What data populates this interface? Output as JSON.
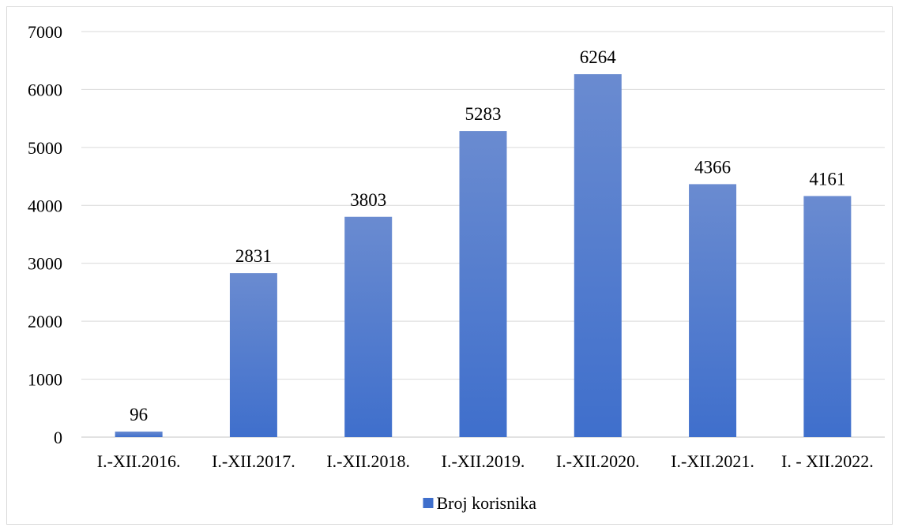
{
  "chart_data": {
    "type": "bar",
    "title": "",
    "xlabel": "",
    "ylabel": "",
    "categories": [
      "I.-XII.2016.",
      "I.-XII.2017.",
      "I.-XII.2018.",
      "I.-XII.2019.",
      "I.-XII.2020.",
      "I.-XII.2021.",
      "I. - XII.2022."
    ],
    "series": [
      {
        "name": "Broj korisnika",
        "values": [
          96,
          2831,
          3803,
          5283,
          6264,
          4366,
          4161
        ]
      }
    ],
    "ylim": [
      0,
      7000
    ],
    "yticks": [
      0,
      1000,
      2000,
      3000,
      4000,
      5000,
      6000,
      7000
    ],
    "grid": true,
    "data_labels": true,
    "legend": "bottom",
    "colors": {
      "bar_top": "#6a8bd0",
      "bar_bottom": "#3f6fcc",
      "grid": "#d9d9d9"
    }
  }
}
